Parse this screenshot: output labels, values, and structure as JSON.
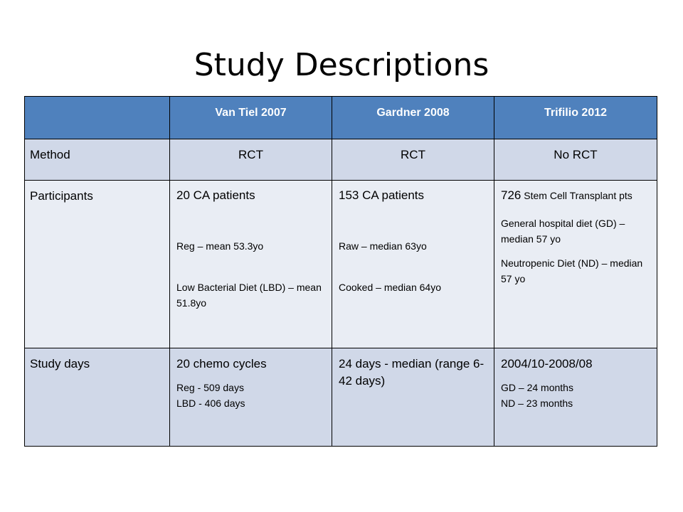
{
  "title": "Study Descriptions",
  "table": {
    "headers": [
      "",
      "Van Tiel 2007",
      "Gardner 2008",
      "Trifilio 2012"
    ],
    "method": {
      "label": "Method",
      "values": [
        "RCT",
        "RCT",
        "No RCT"
      ]
    },
    "participants": {
      "label": "Participants",
      "van_tiel": {
        "main": "20 CA patients",
        "line1": "Reg – mean 53.3yo",
        "line2": "Low Bacterial Diet (LBD) – mean 51.8yo"
      },
      "gardner": {
        "main": "153 CA patients",
        "line1": "Raw – median 63yo",
        "line2": "Cooked – median 64yo"
      },
      "trifilio": {
        "main_number": "726",
        "main_text": " Stem Cell Transplant pts",
        "line1": "General hospital diet (GD) – median 57 yo",
        "line2": "Neutropenic Diet (ND) – median 57 yo"
      }
    },
    "study_days": {
      "label": "Study days",
      "van_tiel": {
        "main": "20 chemo cycles",
        "line1": "Reg - 509 days",
        "line2": "LBD - 406 days"
      },
      "gardner": {
        "main": "24 days - median (range 6-42 days)"
      },
      "trifilio": {
        "main": "2004/10-2008/08",
        "line1": "GD – 24 months",
        "line2": "ND – 23 months"
      }
    }
  }
}
